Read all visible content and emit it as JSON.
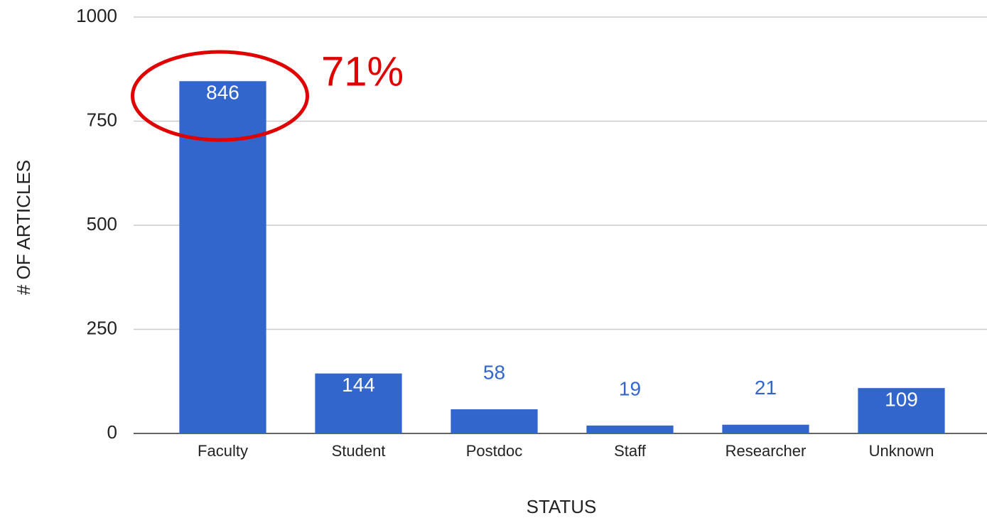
{
  "chart_data": {
    "type": "bar",
    "categories": [
      "Faculty",
      "Student",
      "Postdoc",
      "Staff",
      "Researcher",
      "Unknown"
    ],
    "values": [
      846,
      144,
      58,
      19,
      21,
      109
    ],
    "color": "#3366cc",
    "ylim": [
      0,
      1000
    ],
    "yticks": [
      0,
      250,
      500,
      750,
      1000
    ],
    "grid": true,
    "xlabel": "STATUS",
    "ylabel": "# OF ARTICLES",
    "annotation": "71%"
  }
}
